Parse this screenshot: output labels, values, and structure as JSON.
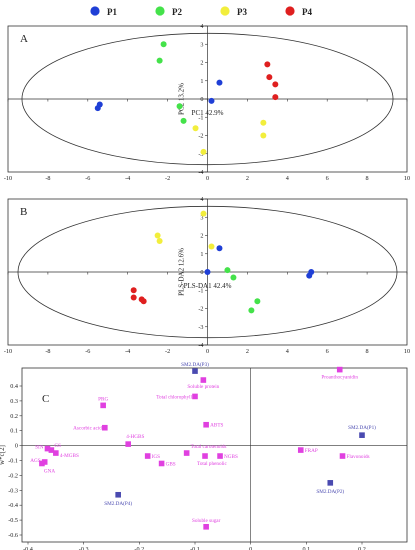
{
  "legend": [
    {
      "label": "P1",
      "color": "#1f3fd6"
    },
    {
      "label": "P2",
      "color": "#44e24a"
    },
    {
      "label": "P3",
      "color": "#f2ee3c"
    },
    {
      "label": "P4",
      "color": "#df1f1f"
    }
  ],
  "chart_data": [
    {
      "type": "scatter",
      "panel": "A",
      "xlabel": "PC1 42.9%",
      "ylabel": "PC2 13.2%",
      "xlim": [
        -10,
        10
      ],
      "ylim": [
        -4,
        4
      ],
      "xticks": [
        "-10",
        "-8",
        "-6",
        "-4",
        "-2",
        "0",
        "2",
        "4",
        "6",
        "8",
        "10"
      ],
      "yticks": [
        "-4",
        "-3",
        "-2",
        "-1",
        "0",
        "1",
        "2",
        "3",
        "4"
      ],
      "ellipse": {
        "rx": 9.3,
        "ry": 3.6
      },
      "series": [
        {
          "name": "P1",
          "color": "#1f3fd6",
          "points": [
            [
              -5.4,
              -0.3
            ],
            [
              -5.5,
              -0.5
            ],
            [
              0.6,
              0.9
            ],
            [
              0.2,
              -0.1
            ]
          ]
        },
        {
          "name": "P2",
          "color": "#44e24a",
          "points": [
            [
              -2.2,
              3.0
            ],
            [
              -2.4,
              2.1
            ],
            [
              -1.4,
              -0.4
            ],
            [
              -1.2,
              -1.2
            ]
          ]
        },
        {
          "name": "P3",
          "color": "#f2ee3c",
          "points": [
            [
              -0.6,
              -1.6
            ],
            [
              -0.2,
              -2.9
            ],
            [
              2.8,
              -1.3
            ],
            [
              2.8,
              -2.0
            ]
          ]
        },
        {
          "name": "P4",
          "color": "#df1f1f",
          "points": [
            [
              3.0,
              1.9
            ],
            [
              3.1,
              1.2
            ],
            [
              3.4,
              0.8
            ],
            [
              3.4,
              0.1
            ]
          ]
        }
      ]
    },
    {
      "type": "scatter",
      "panel": "B",
      "xlabel": "PLS-DA1 42.4%",
      "ylabel": "PLS-DA2 12.6%",
      "xlim": [
        -10,
        10
      ],
      "ylim": [
        -4,
        4
      ],
      "xticks": [
        "-10",
        "-8",
        "-6",
        "-4",
        "-2",
        "0",
        "2",
        "4",
        "6",
        "8",
        "10"
      ],
      "yticks": [
        "-4",
        "-3",
        "-2",
        "-1",
        "0",
        "1",
        "2",
        "3",
        "4"
      ],
      "ellipse": {
        "rx": 9.5,
        "ry": 3.6
      },
      "series": [
        {
          "name": "P1",
          "color": "#1f3fd6",
          "points": [
            [
              0.6,
              1.3
            ],
            [
              0.0,
              0.0
            ],
            [
              5.2,
              0.0
            ],
            [
              5.1,
              -0.2
            ]
          ]
        },
        {
          "name": "P2",
          "color": "#44e24a",
          "points": [
            [
              1.0,
              0.1
            ],
            [
              1.3,
              -0.3
            ],
            [
              2.5,
              -1.6
            ],
            [
              2.2,
              -2.1
            ]
          ]
        },
        {
          "name": "P3",
          "color": "#f2ee3c",
          "points": [
            [
              -2.5,
              2.0
            ],
            [
              -2.4,
              1.7
            ],
            [
              -0.2,
              3.2
            ],
            [
              0.2,
              1.4
            ]
          ]
        },
        {
          "name": "P4",
          "color": "#df1f1f",
          "points": [
            [
              -3.7,
              -1.0
            ],
            [
              -3.7,
              -1.4
            ],
            [
              -3.3,
              -1.5
            ],
            [
              -3.2,
              -1.6
            ]
          ]
        }
      ]
    },
    {
      "type": "scatter",
      "panel": "C",
      "xlabel": "w*c[1]",
      "ylabel": "w*c[2]",
      "xlim": [
        -0.4,
        0.25
      ],
      "ylim": [
        -0.6,
        0.5
      ],
      "xticks": [
        "-0.4",
        "-0.3",
        "-0.2",
        "-0.1",
        "0",
        "0.1",
        "0.2"
      ],
      "yticks": [
        "-0.6",
        "-0.5",
        "-0.4",
        "-0.3",
        "-0.2",
        "-0.1",
        "0",
        "0.1",
        "0.2",
        "0.3",
        "0.4"
      ],
      "series": [
        {
          "name": "variables",
          "color": "#e040e0",
          "points": [
            {
              "x": -0.265,
              "y": 0.27,
              "label": "PRG"
            },
            {
              "x": -0.262,
              "y": 0.12,
              "label": "Ascorbic acid"
            },
            {
              "x": -0.365,
              "y": -0.02,
              "label": "SIN"
            },
            {
              "x": -0.358,
              "y": -0.03,
              "label": "GS"
            },
            {
              "x": -0.37,
              "y": -0.11,
              "label": "AGS"
            },
            {
              "x": -0.35,
              "y": -0.05,
              "label": "4-MGBS"
            },
            {
              "x": -0.375,
              "y": -0.12,
              "label": "GNA"
            },
            {
              "x": -0.22,
              "y": 0.01,
              "label": "4-HGBS"
            },
            {
              "x": -0.185,
              "y": -0.07,
              "label": "IGS"
            },
            {
              "x": -0.16,
              "y": -0.12,
              "label": "GBS"
            },
            {
              "x": -0.085,
              "y": 0.44,
              "label": "Soluble protein"
            },
            {
              "x": -0.1,
              "y": 0.33,
              "label": "Total chlorophyll"
            },
            {
              "x": -0.08,
              "y": 0.14,
              "label": "ABTS"
            },
            {
              "x": -0.115,
              "y": -0.05,
              "label": "Total carotenoids"
            },
            {
              "x": -0.082,
              "y": -0.07,
              "label": "Total phenolic"
            },
            {
              "x": -0.055,
              "y": -0.07,
              "label": "NGBS"
            },
            {
              "x": -0.08,
              "y": -0.545,
              "label": "Soluble sugar"
            },
            {
              "x": 0.16,
              "y": 0.51,
              "label": "Proanthocyanidin"
            },
            {
              "x": 0.09,
              "y": -0.03,
              "label": "FRAP"
            },
            {
              "x": 0.165,
              "y": -0.07,
              "label": "Flavonoids"
            }
          ]
        },
        {
          "name": "groups",
          "color": "#4a4ab0",
          "points": [
            {
              "x": -0.1,
              "y": 0.5,
              "label": "SM2.DA(P3)"
            },
            {
              "x": 0.2,
              "y": 0.07,
              "label": "SM2.DA(P1)"
            },
            {
              "x": 0.143,
              "y": -0.25,
              "label": "SM2.DA(P2)"
            },
            {
              "x": -0.238,
              "y": -0.33,
              "label": "SM2.DA(P4)"
            }
          ]
        }
      ]
    }
  ]
}
